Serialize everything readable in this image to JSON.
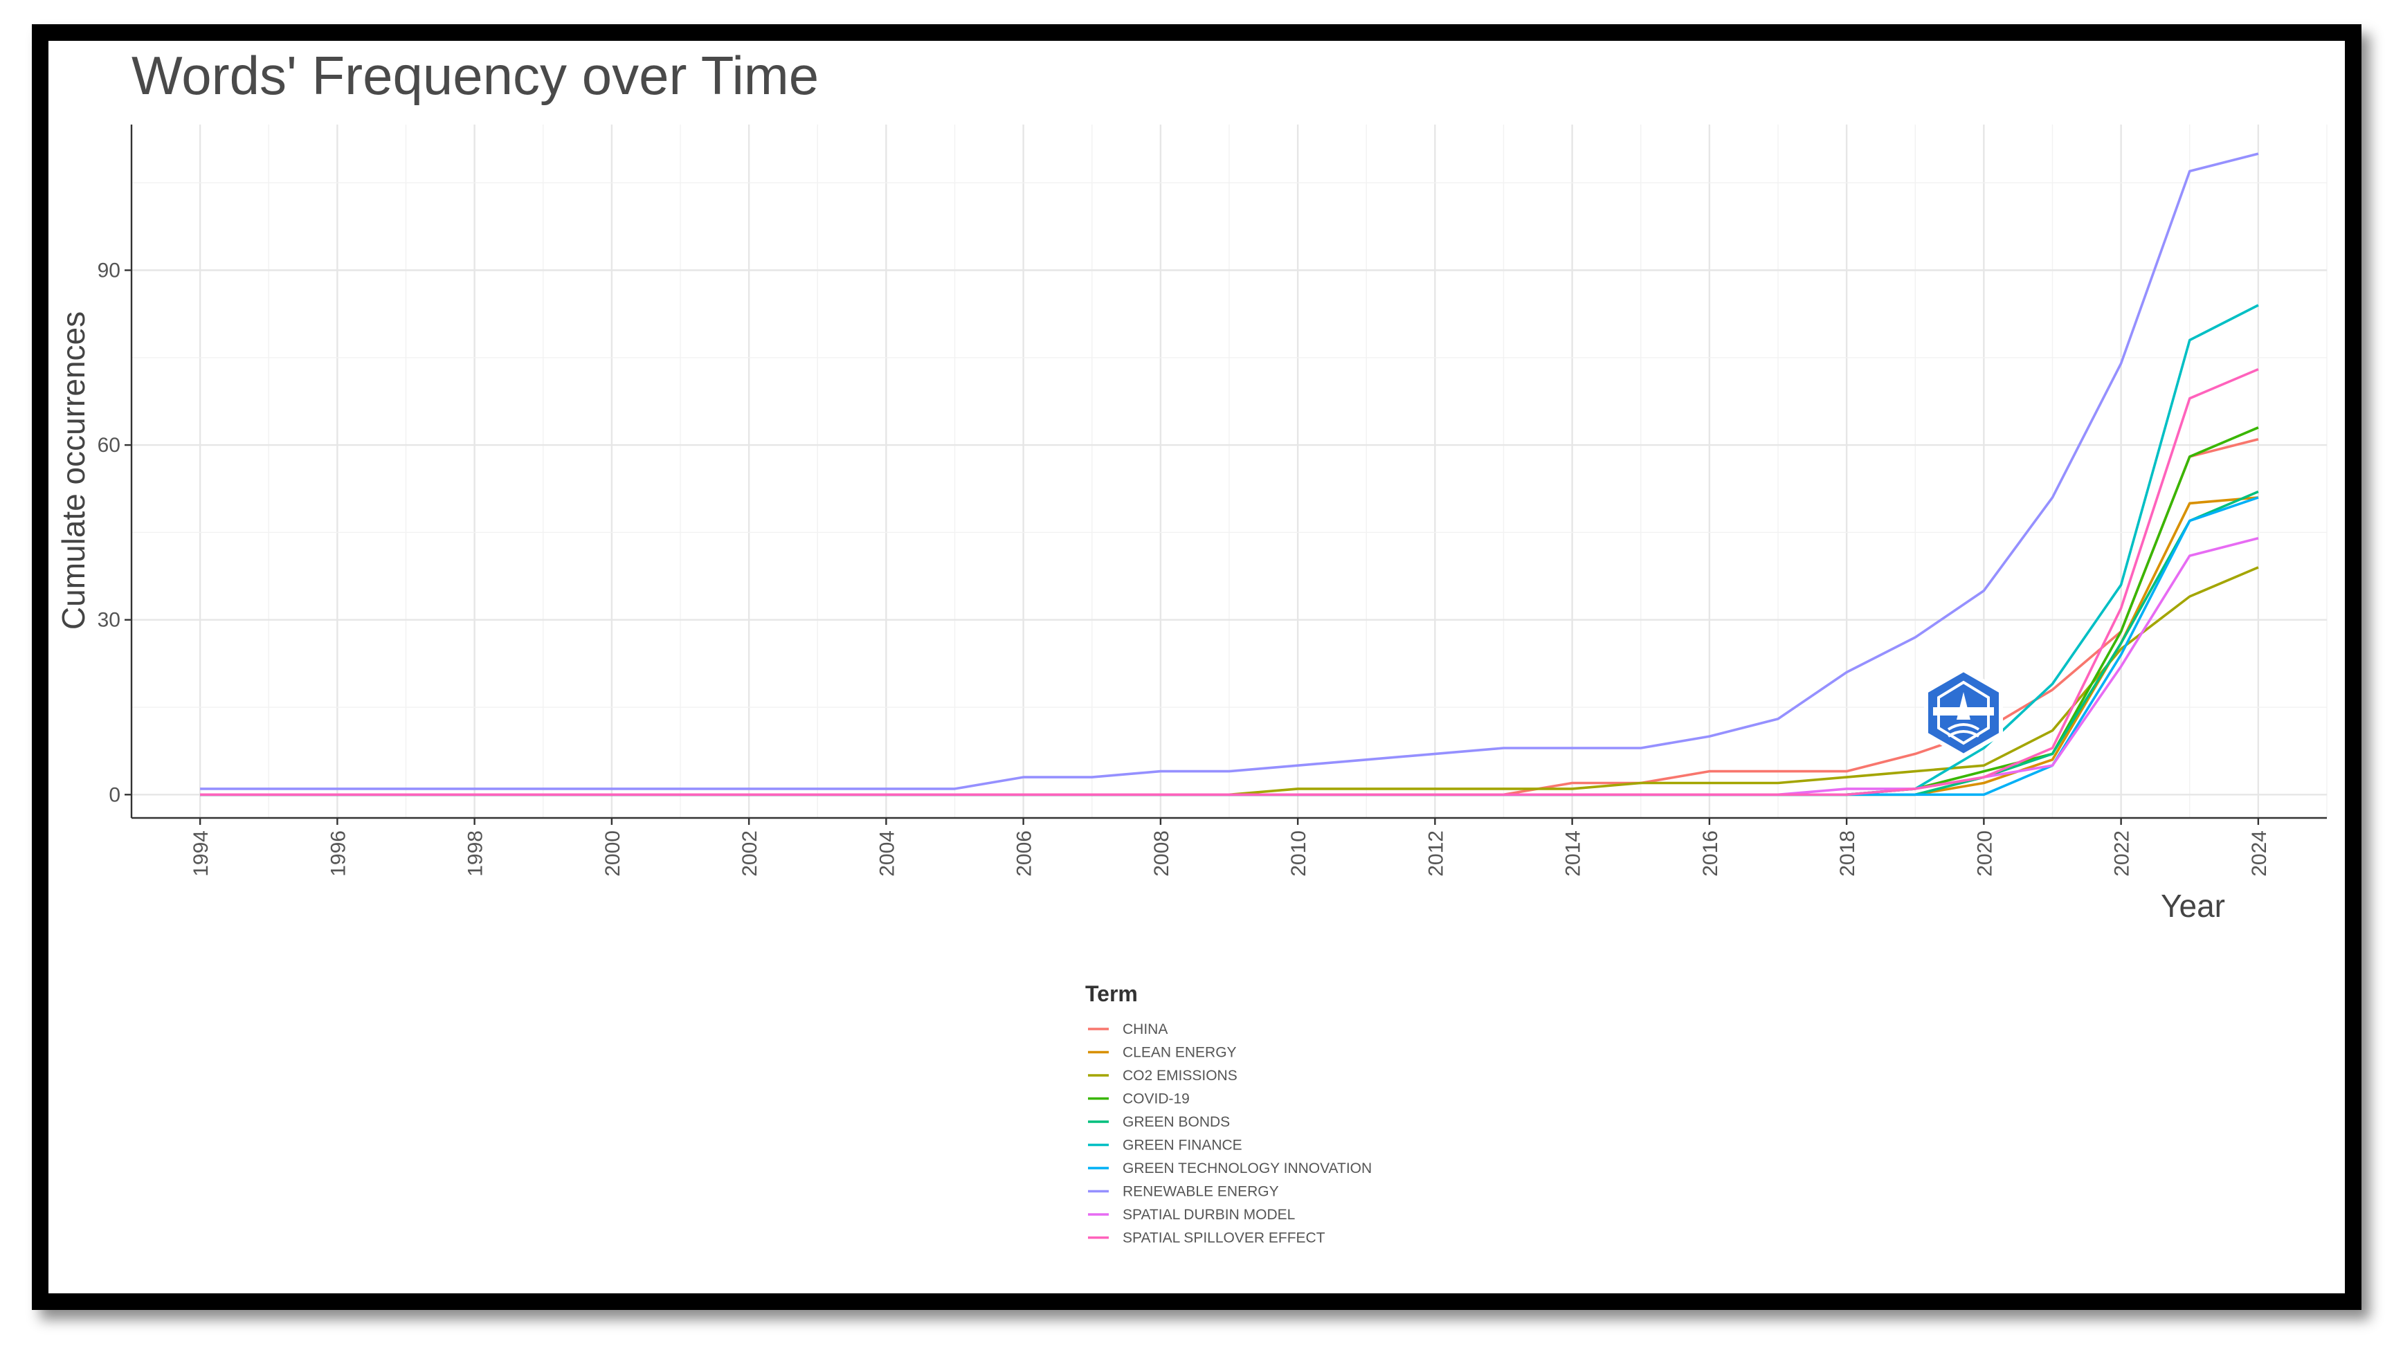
{
  "chart_data": {
    "type": "line",
    "title": "Words' Frequency over Time",
    "xlabel": "Year",
    "ylabel": "Cumulate occurrences",
    "xlim": [
      1993,
      2025
    ],
    "ylim": [
      -4,
      115
    ],
    "x_ticks": [
      1994,
      1996,
      1998,
      2000,
      2002,
      2004,
      2006,
      2008,
      2010,
      2012,
      2014,
      2016,
      2018,
      2020,
      2022,
      2024
    ],
    "y_ticks": [
      0,
      30,
      60,
      90
    ],
    "grid": true,
    "legend_title": "Term",
    "legend_position": "bottom",
    "x": [
      1994,
      1995,
      1996,
      1997,
      1998,
      1999,
      2000,
      2001,
      2002,
      2003,
      2004,
      2005,
      2006,
      2007,
      2008,
      2009,
      2010,
      2011,
      2012,
      2013,
      2014,
      2015,
      2016,
      2017,
      2018,
      2019,
      2020,
      2021,
      2022,
      2023,
      2024
    ],
    "series": [
      {
        "name": "CHINA",
        "color": "#F8766D",
        "values": [
          0,
          0,
          0,
          0,
          0,
          0,
          0,
          0,
          0,
          0,
          0,
          0,
          0,
          0,
          0,
          0,
          0,
          0,
          0,
          0,
          2,
          2,
          4,
          4,
          4,
          7,
          11,
          18,
          28,
          58,
          61
        ]
      },
      {
        "name": "CLEAN ENERGY",
        "color": "#D89000",
        "values": [
          0,
          0,
          0,
          0,
          0,
          0,
          0,
          0,
          0,
          0,
          0,
          0,
          0,
          0,
          0,
          0,
          0,
          0,
          0,
          0,
          0,
          0,
          0,
          0,
          0,
          0,
          2,
          6,
          26,
          50,
          51
        ]
      },
      {
        "name": "CO2 EMISSIONS",
        "color": "#A3A500",
        "values": [
          0,
          0,
          0,
          0,
          0,
          0,
          0,
          0,
          0,
          0,
          0,
          0,
          0,
          0,
          0,
          0,
          1,
          1,
          1,
          1,
          1,
          2,
          2,
          2,
          3,
          4,
          5,
          11,
          25,
          34,
          39
        ]
      },
      {
        "name": "COVID-19",
        "color": "#39B600",
        "values": [
          0,
          0,
          0,
          0,
          0,
          0,
          0,
          0,
          0,
          0,
          0,
          0,
          0,
          0,
          0,
          0,
          0,
          0,
          0,
          0,
          0,
          0,
          0,
          0,
          0,
          1,
          4,
          7,
          28,
          58,
          63
        ]
      },
      {
        "name": "GREEN BONDS",
        "color": "#00BF7D",
        "values": [
          0,
          0,
          0,
          0,
          0,
          0,
          0,
          0,
          0,
          0,
          0,
          0,
          0,
          0,
          0,
          0,
          0,
          0,
          0,
          0,
          0,
          0,
          0,
          0,
          0,
          0,
          3,
          7,
          26,
          47,
          52
        ]
      },
      {
        "name": "GREEN FINANCE",
        "color": "#00BFC4",
        "values": [
          0,
          0,
          0,
          0,
          0,
          0,
          0,
          0,
          0,
          0,
          0,
          0,
          0,
          0,
          0,
          0,
          0,
          0,
          0,
          0,
          0,
          0,
          0,
          0,
          0,
          1,
          8,
          19,
          36,
          78,
          84
        ]
      },
      {
        "name": "GREEN TECHNOLOGY INNOVATION",
        "color": "#00B0F6",
        "values": [
          0,
          0,
          0,
          0,
          0,
          0,
          0,
          0,
          0,
          0,
          0,
          0,
          0,
          0,
          0,
          0,
          0,
          0,
          0,
          0,
          0,
          0,
          0,
          0,
          0,
          0,
          0,
          5,
          24,
          47,
          51
        ]
      },
      {
        "name": "RENEWABLE ENERGY",
        "color": "#9590FF",
        "values": [
          1,
          1,
          1,
          1,
          1,
          1,
          1,
          1,
          1,
          1,
          1,
          1,
          3,
          3,
          4,
          4,
          5,
          6,
          7,
          8,
          8,
          8,
          10,
          13,
          21,
          27,
          35,
          51,
          74,
          107,
          110
        ]
      },
      {
        "name": "SPATIAL DURBIN MODEL",
        "color": "#E76BF3",
        "values": [
          0,
          0,
          0,
          0,
          0,
          0,
          0,
          0,
          0,
          0,
          0,
          0,
          0,
          0,
          0,
          0,
          0,
          0,
          0,
          0,
          0,
          0,
          0,
          0,
          1,
          1,
          3,
          5,
          22,
          41,
          44
        ]
      },
      {
        "name": "SPATIAL SPILLOVER EFFECT",
        "color": "#FF62BC",
        "values": [
          0,
          0,
          0,
          0,
          0,
          0,
          0,
          0,
          0,
          0,
          0,
          0,
          0,
          0,
          0,
          0,
          0,
          0,
          0,
          0,
          0,
          0,
          0,
          0,
          0,
          1,
          3,
          8,
          32,
          68,
          73
        ]
      }
    ]
  }
}
